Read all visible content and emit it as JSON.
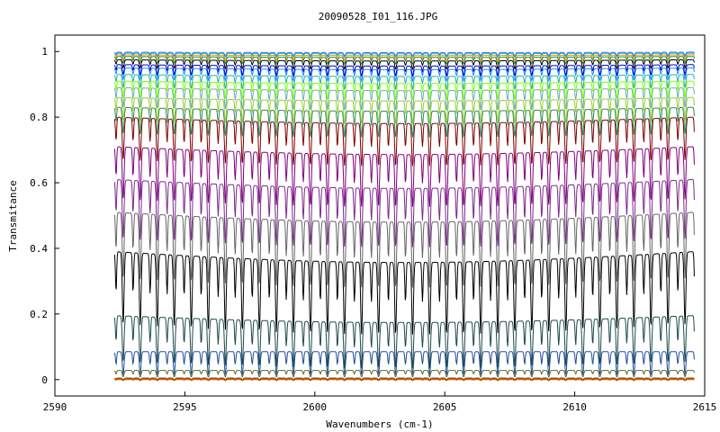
{
  "chart_data": {
    "type": "line",
    "title": "20090528_I01_116.JPG",
    "xlabel": "Wavenumbers (cm-1)",
    "ylabel": "Transmitance",
    "xlim": [
      2590,
      2615
    ],
    "ylim": [
      -0.05,
      1.05
    ],
    "x_ticks": [
      2590,
      2595,
      2600,
      2605,
      2610,
      2615
    ],
    "y_ticks": [
      0,
      0.2,
      0.4,
      0.6,
      0.8,
      1
    ],
    "x_tick_labels": [
      "2590",
      "2595",
      "2600",
      "2605",
      "2610",
      "2615"
    ],
    "y_tick_labels": [
      "0",
      "0.2",
      "0.4",
      "0.6",
      "0.8",
      "1"
    ],
    "grid": false,
    "legend": "none",
    "x_range": [
      2592.3,
      2614.6
    ],
    "line_spacing_cm1": 0.655,
    "series": [
      {
        "color": "#808000",
        "baseline": 0.0,
        "depth": 0.003
      },
      {
        "color": "#ff4500",
        "baseline": 0.002,
        "depth": 0.004
      },
      {
        "color": "#8b4513",
        "baseline": 0.005,
        "depth": 0.005
      },
      {
        "color": "#556b2f",
        "baseline": 0.028,
        "depth": 0.02
      },
      {
        "color": "#1f4e9b",
        "baseline": 0.085,
        "depth": 0.07
      },
      {
        "color": "#1c4a4a",
        "baseline": 0.195,
        "depth": 0.14
      },
      {
        "color": "#000000",
        "baseline": 0.39,
        "depth": 0.22
      },
      {
        "color": "#666666",
        "baseline": 0.51,
        "depth": 0.2
      },
      {
        "color": "#7b2a8b",
        "baseline": 0.61,
        "depth": 0.18
      },
      {
        "color": "#800080",
        "baseline": 0.71,
        "depth": 0.16
      },
      {
        "color": "#800000",
        "baseline": 0.8,
        "depth": 0.13
      },
      {
        "color": "#2e8b57",
        "baseline": 0.83,
        "depth": 0.08
      },
      {
        "color": "#9acd32",
        "baseline": 0.86,
        "depth": 0.07
      },
      {
        "color": "#66b2b2",
        "baseline": 0.89,
        "depth": 0.06
      },
      {
        "color": "#7fff00",
        "baseline": 0.91,
        "depth": 0.05
      },
      {
        "color": "#20b2aa",
        "baseline": 0.93,
        "depth": 0.04
      },
      {
        "color": "#1e90ff",
        "baseline": 0.95,
        "depth": 0.035
      },
      {
        "color": "#0000cd",
        "baseline": 0.96,
        "depth": 0.03
      },
      {
        "color": "#000000",
        "baseline": 0.975,
        "depth": 0.025
      },
      {
        "color": "#228b22",
        "baseline": 0.985,
        "depth": 0.02
      },
      {
        "color": "#ff8c00",
        "baseline": 0.99,
        "depth": 0.015
      },
      {
        "color": "#00ced1",
        "baseline": 0.995,
        "depth": 0.012
      },
      {
        "color": "#4169e1",
        "baseline": 0.998,
        "depth": 0.01
      }
    ]
  }
}
